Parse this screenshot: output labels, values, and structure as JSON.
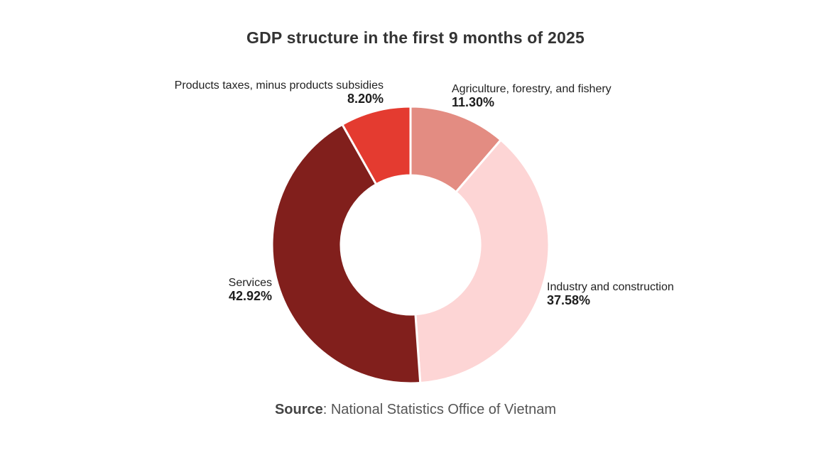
{
  "title": "GDP structure in the first 9 months of 2025",
  "source": {
    "label": "Source",
    "text": ": National Statistics Office of Vietnam"
  },
  "chart_data": {
    "type": "pie",
    "variant": "donut",
    "title": "GDP structure in the first 9 months of 2025",
    "categories": [
      "Agriculture, forestry, and fishery",
      "Industry and construction",
      "Services",
      "Products taxes, minus products subsidies"
    ],
    "values": [
      11.3,
      37.58,
      42.92,
      8.2
    ],
    "value_labels": [
      "11.30%",
      "37.58%",
      "42.92%",
      "8.20%"
    ],
    "colors": [
      "#e38c82",
      "#fdd5d5",
      "#811f1c",
      "#e43b30"
    ],
    "start_angle_deg": 0,
    "direction": "clockwise",
    "legend": "none (direct labels)",
    "source": "Source: National Statistics Office of Vietnam"
  },
  "labels": {
    "agri": {
      "name": "Agriculture, forestry, and fishery",
      "pct": "11.30%"
    },
    "industry": {
      "name": "Industry and construction",
      "pct": "37.58%"
    },
    "services": {
      "name": "Services",
      "pct": "42.92%"
    },
    "taxes": {
      "name": "Products taxes, minus products subsidies",
      "pct": "8.20%"
    }
  }
}
